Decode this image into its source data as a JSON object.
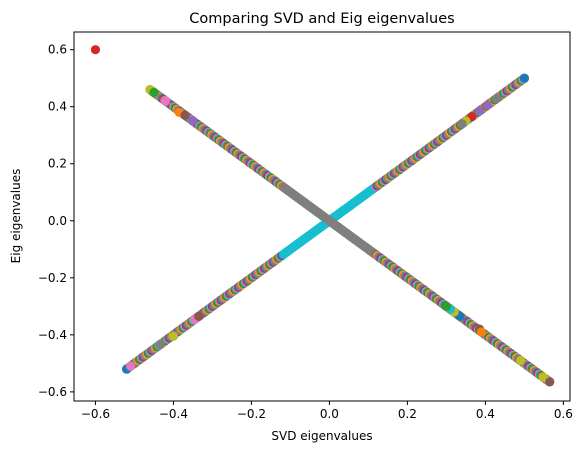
{
  "chart_data": {
    "type": "scatter",
    "title": "Comparing SVD and Eig eigenvalues",
    "xlabel": "SVD eigenvalues",
    "ylabel": "Eig eigenvalues",
    "xlim": [
      -0.655,
      0.617
    ],
    "ylim": [
      -0.632,
      0.662
    ],
    "xticks": [
      -0.6,
      -0.4,
      -0.2,
      0.0,
      0.2,
      0.4,
      0.6
    ],
    "xtick_labels": [
      "−0.6",
      "−0.4",
      "−0.2",
      "0.0",
      "0.2",
      "0.4",
      "0.6"
    ],
    "yticks": [
      -0.6,
      -0.4,
      -0.2,
      0.0,
      0.2,
      0.4,
      0.6
    ],
    "ytick_labels": [
      "−0.6",
      "−0.4",
      "−0.2",
      "0.0",
      "0.2",
      "0.4",
      "0.6"
    ],
    "grid": false,
    "legend": "none",
    "palette": [
      "#1f77b4",
      "#ff7f0e",
      "#2ca02c",
      "#d62728",
      "#9467bd",
      "#8c564b",
      "#e377c2",
      "#7f7f7f",
      "#bcbd22",
      "#17becf"
    ],
    "diagonal_bands": [
      {
        "slope": 1,
        "from": -0.52,
        "to": 0.5,
        "description": "SVD value equals Eig value"
      },
      {
        "slope": -1,
        "from": -0.46,
        "to": 0.565,
        "description": "Eig value equals negative SVD value"
      }
    ],
    "highlighted_points": [
      {
        "x": -0.6,
        "y": 0.6,
        "color": "#d62728"
      },
      {
        "x": 0.5,
        "y": 0.5,
        "color": "#1f77b4"
      },
      {
        "x": -0.46,
        "y": 0.46,
        "color": "#bcbd22"
      },
      {
        "x": -0.45,
        "y": 0.45,
        "color": "#2ca02c"
      },
      {
        "x": -0.42,
        "y": 0.42,
        "color": "#e377c2"
      },
      {
        "x": -0.385,
        "y": 0.38,
        "color": "#ff7f0e"
      },
      {
        "x": -0.37,
        "y": 0.37,
        "color": "#8c564b"
      },
      {
        "x": -0.35,
        "y": 0.35,
        "color": "#9467bd"
      },
      {
        "x": 0.43,
        "y": 0.43,
        "color": "#7f7f7f"
      },
      {
        "x": 0.405,
        "y": 0.405,
        "color": "#9467bd"
      },
      {
        "x": 0.385,
        "y": 0.385,
        "color": "#9467bd"
      },
      {
        "x": 0.365,
        "y": 0.365,
        "color": "#d62728"
      },
      {
        "x": 0.35,
        "y": 0.35,
        "color": "#bcbd22"
      },
      {
        "x": 0.34,
        "y": 0.34,
        "color": "#7f7f7f"
      },
      {
        "x": -0.52,
        "y": -0.52,
        "color": "#1f77b4"
      },
      {
        "x": -0.51,
        "y": -0.51,
        "color": "#e377c2"
      },
      {
        "x": -0.435,
        "y": -0.435,
        "color": "#7f7f7f"
      },
      {
        "x": -0.4,
        "y": -0.405,
        "color": "#bcbd22"
      },
      {
        "x": -0.345,
        "y": -0.345,
        "color": "#e377c2"
      },
      {
        "x": -0.335,
        "y": -0.335,
        "color": "#8c564b"
      },
      {
        "x": 0.49,
        "y": -0.49,
        "color": "#bcbd22"
      },
      {
        "x": 0.55,
        "y": -0.55,
        "color": "#bcbd22"
      },
      {
        "x": 0.565,
        "y": -0.565,
        "color": "#8c564b"
      },
      {
        "x": 0.385,
        "y": -0.38,
        "color": "#8c564b"
      },
      {
        "x": 0.39,
        "y": -0.39,
        "color": "#ff7f0e"
      },
      {
        "x": 0.335,
        "y": -0.335,
        "color": "#1f77b4"
      },
      {
        "x": 0.32,
        "y": -0.32,
        "color": "#bcbd22"
      },
      {
        "x": 0.31,
        "y": -0.31,
        "color": "#17becf"
      },
      {
        "x": 0.3,
        "y": -0.3,
        "color": "#2ca02c"
      }
    ]
  }
}
